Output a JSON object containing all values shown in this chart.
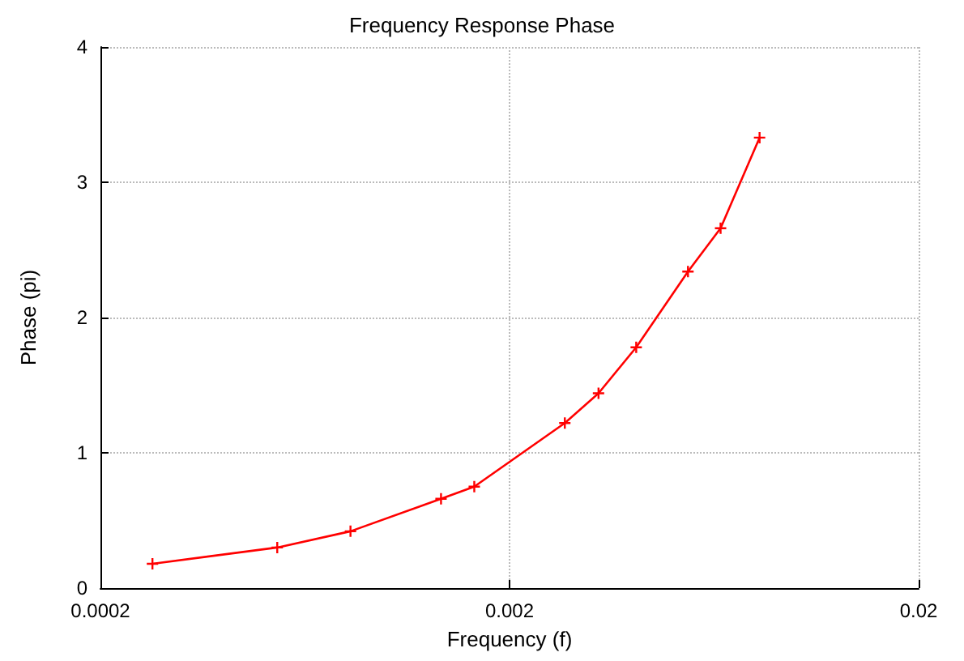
{
  "chart_data": {
    "type": "line",
    "title": "Frequency Response Phase",
    "xlabel": "Frequency (f)",
    "ylabel": "Phase (pi)",
    "x": [
      0.000268,
      0.000541,
      0.000817,
      0.00136,
      0.00164,
      0.00273,
      0.0033,
      0.00408,
      0.00546,
      0.00656,
      0.00817
    ],
    "series": [
      {
        "color": "#ff0000",
        "values": [
          0.18,
          0.3,
          0.42,
          0.66,
          0.75,
          1.22,
          1.44,
          1.78,
          2.34,
          2.66,
          3.33
        ]
      }
    ],
    "xlim": [
      0.0002,
      0.02
    ],
    "xticks": [
      0.0002,
      0.002,
      0.02
    ],
    "ylim": [
      0,
      4
    ],
    "yticks": [
      0,
      1,
      2,
      3,
      4
    ],
    "log": "x",
    "grid": true,
    "marker": "cross",
    "line_style": "solid"
  }
}
